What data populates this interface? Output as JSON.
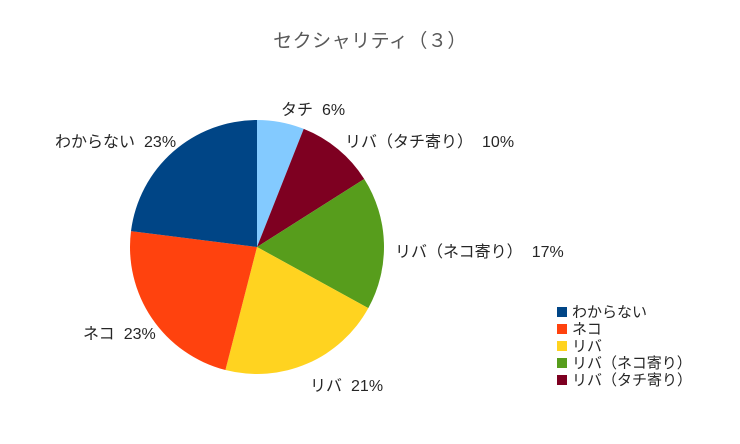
{
  "title": "セクシャリティ（３）",
  "colors": {
    "title_text": "#595959",
    "label_text": "#262626",
    "background": "#ffffff"
  },
  "chart_data": {
    "type": "pie",
    "title": "セクシャリティ（３）",
    "start_angle": "top",
    "direction": "clockwise",
    "categories": [
      "タチ",
      "リバ（タチ寄り）",
      "リバ（ネコ寄り）",
      "リバ",
      "ネコ",
      "わからない"
    ],
    "values": [
      6,
      10,
      17,
      21,
      23,
      23
    ],
    "slice_colors": [
      "#83CAFF",
      "#7E0021",
      "#579D1C",
      "#FFD320",
      "#FF420E",
      "#004586"
    ],
    "data_labels": [
      {
        "category": "タチ",
        "pct": "6%"
      },
      {
        "category": "リバ（タチ寄り）",
        "pct": "10%"
      },
      {
        "category": "リバ（ネコ寄り）",
        "pct": "17%"
      },
      {
        "category": "リバ",
        "pct": "21%"
      },
      {
        "category": "ネコ",
        "pct": "23%"
      },
      {
        "category": "わからない",
        "pct": "23%"
      }
    ],
    "legend": {
      "position": "right",
      "entries": [
        {
          "label": "わからない",
          "color": "#004586"
        },
        {
          "label": "ネコ",
          "color": "#FF420E"
        },
        {
          "label": "リバ",
          "color": "#FFD320"
        },
        {
          "label": "リバ（ネコ寄り）",
          "color": "#579D1C"
        },
        {
          "label": "リバ（タチ寄り）",
          "color": "#7E0021"
        }
      ]
    }
  }
}
